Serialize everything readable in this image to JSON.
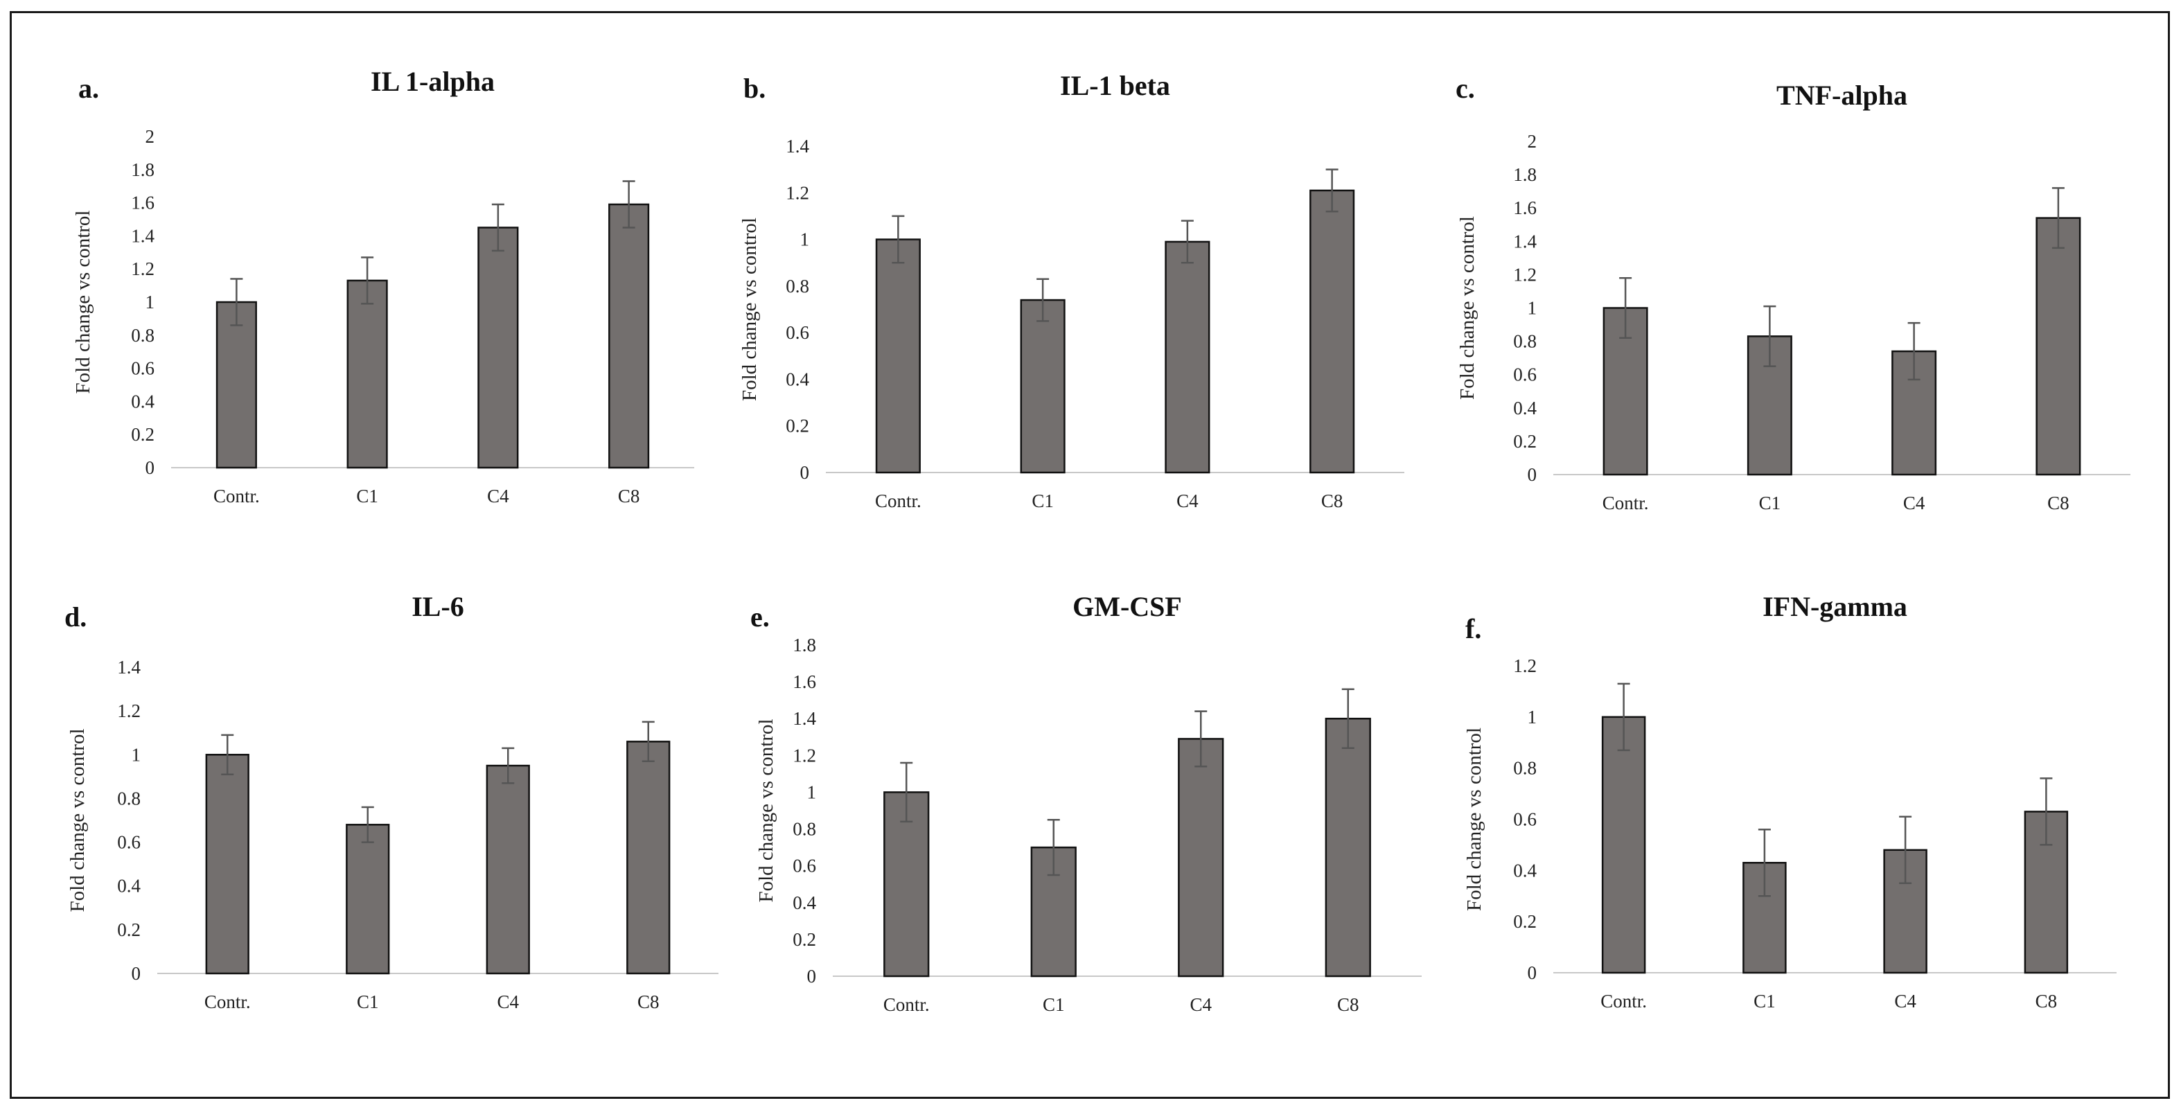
{
  "chart_data": [
    {
      "type": "bar",
      "panel": "a.",
      "title": "IL 1-alpha",
      "categories": [
        "Contr.",
        "C1",
        "C4",
        "C8"
      ],
      "values": [
        1.0,
        1.13,
        1.45,
        1.59
      ],
      "errors": [
        0.14,
        0.14,
        0.14,
        0.14
      ],
      "xlabel": "",
      "ylabel": "Fold change vs control",
      "ylim": [
        0,
        2
      ],
      "yticks": [
        0,
        0.2,
        0.4,
        0.6,
        0.8,
        1,
        1.2,
        1.4,
        1.6,
        1.8,
        2
      ],
      "grid": false
    },
    {
      "type": "bar",
      "panel": "b.",
      "title": "IL-1 beta",
      "categories": [
        "Contr.",
        "C1",
        "C4",
        "C8"
      ],
      "values": [
        1.0,
        0.74,
        0.99,
        1.21
      ],
      "errors": [
        0.1,
        0.09,
        0.09,
        0.09
      ],
      "xlabel": "",
      "ylabel": "Fold change vs control",
      "ylim": [
        0,
        1.4
      ],
      "yticks": [
        0,
        0.2,
        0.4,
        0.6,
        0.8,
        1,
        1.2,
        1.4
      ],
      "grid": false
    },
    {
      "type": "bar",
      "panel": "c.",
      "title": "TNF-alpha",
      "categories": [
        "Contr.",
        "C1",
        "C4",
        "C8"
      ],
      "values": [
        1.0,
        0.83,
        0.74,
        1.54
      ],
      "errors": [
        0.18,
        0.18,
        0.17,
        0.18
      ],
      "xlabel": "",
      "ylabel": "Fold change vs control",
      "ylim": [
        0,
        2
      ],
      "yticks": [
        0,
        0.2,
        0.4,
        0.6,
        0.8,
        1,
        1.2,
        1.4,
        1.6,
        1.8,
        2
      ],
      "grid": false
    },
    {
      "type": "bar",
      "panel": "d.",
      "title": "IL-6",
      "categories": [
        "Contr.",
        "C1",
        "C4",
        "C8"
      ],
      "values": [
        1.0,
        0.68,
        0.95,
        1.06
      ],
      "errors": [
        0.09,
        0.08,
        0.08,
        0.09
      ],
      "xlabel": "",
      "ylabel": "Fold change vs control",
      "ylim": [
        0,
        1.4
      ],
      "yticks": [
        0,
        0.2,
        0.4,
        0.6,
        0.8,
        1,
        1.2,
        1.4
      ],
      "grid": false
    },
    {
      "type": "bar",
      "panel": "e.",
      "title": "GM-CSF",
      "categories": [
        "Contr.",
        "C1",
        "C4",
        "C8"
      ],
      "values": [
        1.0,
        0.7,
        1.29,
        1.4
      ],
      "errors": [
        0.16,
        0.15,
        0.15,
        0.16
      ],
      "xlabel": "",
      "ylabel": "Fold change vs control",
      "ylim": [
        0,
        1.8
      ],
      "yticks": [
        0,
        0.2,
        0.4,
        0.6,
        0.8,
        1,
        1.2,
        1.4,
        1.6,
        1.8
      ],
      "grid": false
    },
    {
      "type": "bar",
      "panel": "f.",
      "title": "IFN-gamma",
      "categories": [
        "Contr.",
        "C1",
        "C4",
        "C8"
      ],
      "values": [
        1.0,
        0.43,
        0.48,
        0.63
      ],
      "errors": [
        0.13,
        0.13,
        0.13,
        0.13
      ],
      "xlabel": "",
      "ylabel": "Fold change vs control",
      "ylim": [
        0,
        1.2
      ],
      "yticks": [
        0,
        0.2,
        0.4,
        0.6,
        0.8,
        1,
        1.2
      ],
      "grid": false
    }
  ],
  "colors": {
    "bar_fill": "#736f6e",
    "bar_stroke": "#111111",
    "error_bar": "#555555",
    "axis": "#c8c8c8",
    "text": "#222222"
  }
}
